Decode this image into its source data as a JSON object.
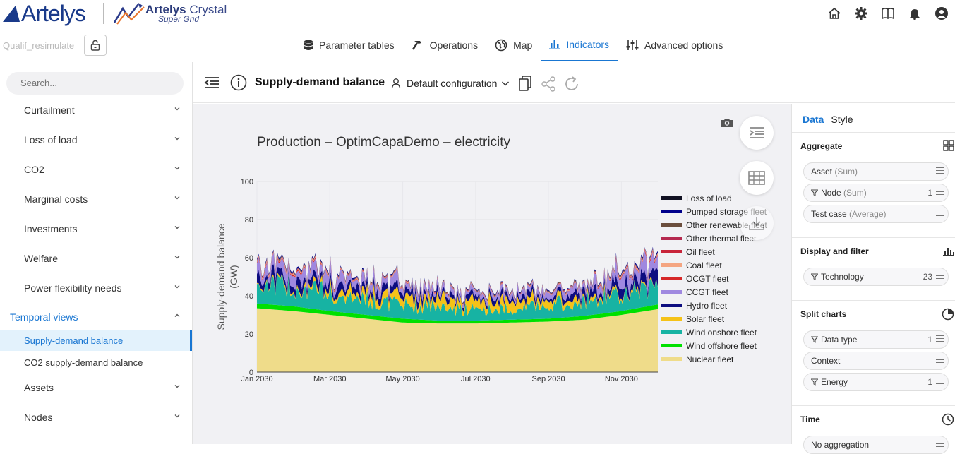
{
  "brand": {
    "logo": "Artelys",
    "product_bold": "Artelys",
    "product": "Crystal",
    "product_sub": "Super Grid"
  },
  "top_icons": [
    "home-icon",
    "gear-icon",
    "book-icon",
    "bell-icon",
    "user-icon"
  ],
  "nav": {
    "scenario": "Qualif_resimulate",
    "tabs": [
      {
        "label": "Parameter tables",
        "icon": "database-icon"
      },
      {
        "label": "Operations",
        "icon": "hammer-icon"
      },
      {
        "label": "Map",
        "icon": "globe-icon"
      },
      {
        "label": "Indicators",
        "icon": "bar-chart-icon",
        "active": true
      },
      {
        "label": "Advanced options",
        "icon": "sliders-icon"
      }
    ]
  },
  "sidebar": {
    "search_placeholder": "Search...",
    "items": [
      {
        "label": "Curtailment"
      },
      {
        "label": "Loss of load"
      },
      {
        "label": "CO2"
      },
      {
        "label": "Marginal costs"
      },
      {
        "label": "Investments"
      },
      {
        "label": "Welfare"
      },
      {
        "label": "Power flexibility needs"
      }
    ],
    "group": "Temporal views",
    "sub_items": [
      {
        "label": "Supply-demand balance",
        "selected": true
      },
      {
        "label": "CO2 supply-demand balance"
      }
    ],
    "more_items": [
      {
        "label": "Assets"
      },
      {
        "label": "Nodes"
      }
    ]
  },
  "toolbar": {
    "title": "Supply-demand balance",
    "config": "Default configuration"
  },
  "panel": {
    "tabs": [
      "Data",
      "Style"
    ],
    "sections": [
      {
        "title": "Aggregate",
        "chips": [
          {
            "label": "Asset",
            "sub": "(Sum)",
            "filter": false,
            "count": ""
          },
          {
            "label": "Node",
            "sub": "(Sum)",
            "filter": true,
            "count": "1"
          },
          {
            "label": "Test case",
            "sub": "(Average)",
            "filter": false,
            "count": ""
          }
        ]
      },
      {
        "title": "Display and filter",
        "chips": [
          {
            "label": "Technology",
            "sub": "",
            "filter": true,
            "count": "23"
          }
        ]
      },
      {
        "title": "Split charts",
        "chips": [
          {
            "label": "Data type",
            "sub": "",
            "filter": true,
            "count": "1"
          },
          {
            "label": "Context",
            "sub": "",
            "filter": false,
            "count": ""
          },
          {
            "label": "Energy",
            "sub": "",
            "filter": true,
            "count": "1"
          }
        ]
      },
      {
        "title": "Time",
        "chips": [
          {
            "label": "No aggregation",
            "sub": "",
            "filter": false,
            "count": ""
          }
        ]
      }
    ]
  },
  "chart_data": {
    "type": "area",
    "title": "Production – OptimCapaDemo – electricity",
    "ylabel": "Supply-demand balance (GW)",
    "xlabel": "",
    "ylim": [
      0,
      100
    ],
    "y_ticks": [
      0,
      20,
      40,
      60,
      80,
      100
    ],
    "x_ticks": [
      "Jan 2030",
      "Mar 2030",
      "May 2030",
      "Jul 2030",
      "Sep 2030",
      "Nov 2030"
    ],
    "x": [
      "Jan 2030",
      "Feb 2030",
      "Mar 2030",
      "Apr 2030",
      "May 2030",
      "Jun 2030",
      "Jul 2030",
      "Aug 2030",
      "Sep 2030",
      "Oct 2030",
      "Nov 2030",
      "Dec 2030"
    ],
    "stacked": true,
    "legend_position": "right",
    "series": [
      {
        "name": "Nuclear fleet",
        "color": "#efdc8a",
        "values": [
          33.5,
          32,
          30,
          28,
          26,
          25.5,
          25.5,
          26,
          26.5,
          27.5,
          30,
          33
        ]
      },
      {
        "name": "Wind offshore fleet",
        "color": "#00e000",
        "values": [
          2.5,
          2.5,
          2,
          2,
          2,
          1.5,
          1.5,
          1.5,
          1.5,
          2,
          2,
          2.5
        ]
      },
      {
        "name": "Wind onshore fleet",
        "color": "#17b3a3",
        "values": [
          9,
          9,
          8,
          7,
          6,
          6,
          5,
          5,
          6,
          7,
          8,
          9
        ]
      },
      {
        "name": "Solar fleet",
        "color": "#f5c218",
        "values": [
          0.5,
          1,
          2,
          3,
          4,
          4,
          4,
          4,
          3,
          2,
          1,
          0.5
        ]
      },
      {
        "name": "Hydro fleet",
        "color": "#0d0d80",
        "values": [
          4,
          4,
          3,
          3,
          3,
          2,
          2,
          2,
          2,
          3,
          4,
          5
        ]
      },
      {
        "name": "CCGT fleet",
        "color": "#9f88e0",
        "values": [
          5,
          5,
          4,
          3,
          3,
          2,
          2,
          2,
          2,
          3,
          5,
          6
        ]
      },
      {
        "name": "OCGT fleet",
        "color": "#d62728",
        "values": [
          0.5,
          0.5,
          0.3,
          0.2,
          0.2,
          0.1,
          0.1,
          0.1,
          0.1,
          0.2,
          0.5,
          0.6
        ]
      },
      {
        "name": "Coal fleet",
        "color": "#f4a582",
        "values": [
          0.5,
          0.5,
          0.3,
          0.3,
          0.3,
          0.2,
          0.2,
          0.2,
          0.2,
          0.3,
          0.5,
          0.5
        ]
      },
      {
        "name": "Oil fleet",
        "color": "#c8243a",
        "values": [
          0.1,
          0.1,
          0.1,
          0.1,
          0.1,
          0.1,
          0.1,
          0.1,
          0.1,
          0.1,
          0.1,
          0.1
        ]
      },
      {
        "name": "Other thermal fleet",
        "color": "#b5294f",
        "values": [
          0.2,
          0.2,
          0.2,
          0.2,
          0.2,
          0.2,
          0.2,
          0.2,
          0.2,
          0.2,
          0.2,
          0.2
        ]
      },
      {
        "name": "Other renewable fleet",
        "color": "#6b4e3d",
        "values": [
          0.3,
          0.3,
          0.3,
          0.3,
          0.3,
          0.3,
          0.3,
          0.3,
          0.3,
          0.3,
          0.3,
          0.3
        ]
      },
      {
        "name": "Pumped storage fleet",
        "color": "#00008b",
        "values": [
          0.5,
          0.5,
          0.4,
          0.3,
          0.3,
          0.3,
          0.3,
          0.3,
          0.3,
          0.3,
          0.5,
          0.6
        ]
      },
      {
        "name": "Loss of load",
        "color": "#111122",
        "values": [
          0,
          0,
          0,
          0,
          0,
          0,
          0,
          0,
          0,
          0,
          0,
          0
        ]
      }
    ]
  }
}
